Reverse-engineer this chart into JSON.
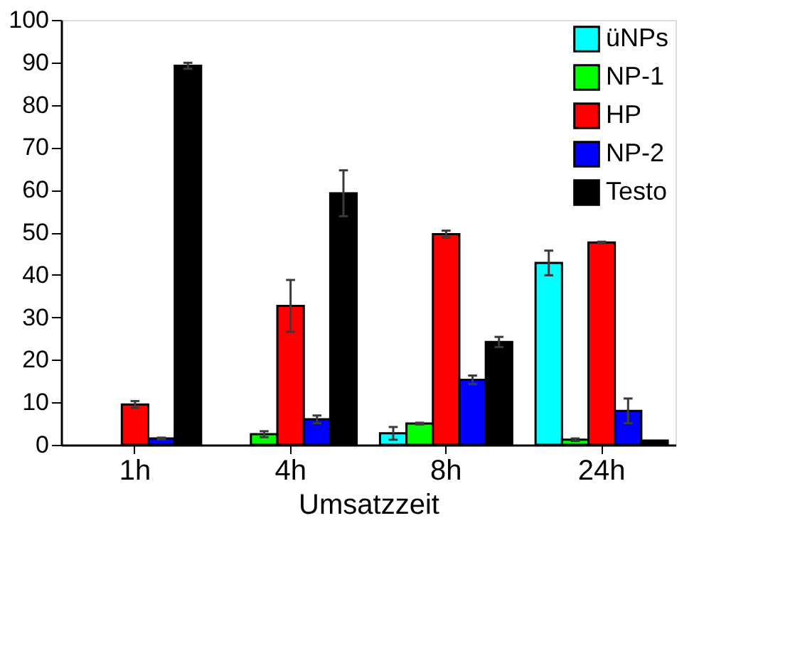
{
  "chart_data": {
    "type": "bar",
    "xlabel": "Umsatzzeit",
    "categories": [
      "1h",
      "4h",
      "8h",
      "24h"
    ],
    "series": [
      {
        "name": "üNPs",
        "color": "#00ffff",
        "values": [
          null,
          null,
          2.7,
          42.8
        ],
        "errors": [
          null,
          null,
          1.5,
          2.9
        ]
      },
      {
        "name": "NP-1",
        "color": "#00ff00",
        "values": [
          null,
          2.5,
          5.0,
          1.2
        ],
        "errors": [
          null,
          0.7,
          0.2,
          0.3
        ]
      },
      {
        "name": "HP",
        "color": "#ff0000",
        "values": [
          9.5,
          32.7,
          49.6,
          47.6
        ],
        "errors": [
          0.8,
          6.1,
          0.8,
          0.2
        ]
      },
      {
        "name": "NP-2",
        "color": "#0000ff",
        "values": [
          1.5,
          6.0,
          15.3,
          8.0
        ],
        "errors": [
          0.2,
          0.9,
          1.0,
          2.9
        ]
      },
      {
        "name": "Testo",
        "color": "#000000",
        "values": [
          89.2,
          59.2,
          24.2,
          1.0
        ],
        "errors": [
          0.7,
          5.4,
          1.2,
          null
        ]
      }
    ],
    "ylim": [
      0,
      100
    ],
    "yticks": [
      0,
      10,
      20,
      30,
      40,
      50,
      60,
      70,
      80,
      90,
      100
    ],
    "grid": false,
    "legend": "top right"
  }
}
